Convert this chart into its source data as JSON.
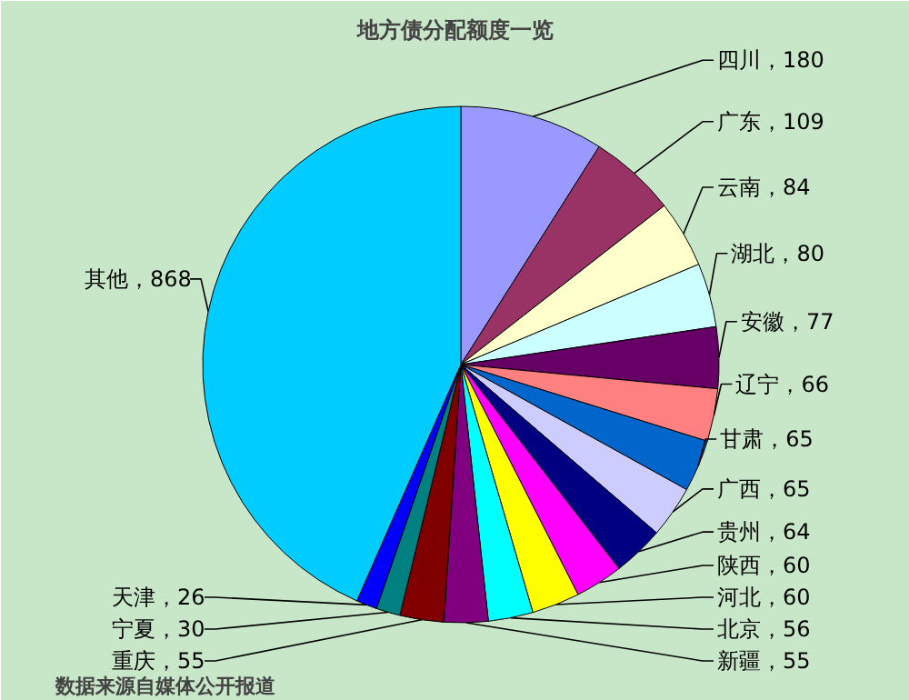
{
  "chart_data": {
    "type": "pie",
    "title": "地方债分配额度一览",
    "categories": [
      "四川",
      "广东",
      "云南",
      "湖北",
      "安徽",
      "辽宁",
      "甘肃",
      "广西",
      "贵州",
      "陕西",
      "河北",
      "北京",
      "新疆",
      "重庆",
      "宁夏",
      "天津",
      "其他"
    ],
    "values": [
      180,
      109,
      84,
      80,
      77,
      66,
      65,
      65,
      64,
      60,
      60,
      56,
      55,
      55,
      30,
      26,
      868
    ],
    "colors": [
      "#9999ff",
      "#993366",
      "#ffffcc",
      "#ccffff",
      "#660066",
      "#ff8080",
      "#0066cc",
      "#ccccff",
      "#000080",
      "#ff00ff",
      "#ffff00",
      "#00ffff",
      "#800080",
      "#800000",
      "#008080",
      "#0000ff",
      "#00ccff"
    ],
    "value_labels": [
      "，180",
      "，109",
      "，84",
      "，80",
      "，77",
      "，66",
      "，65",
      "，65",
      "，64",
      "，60",
      "，60",
      "，56",
      "，55",
      "，55",
      "，30",
      "，26",
      "，868"
    ],
    "annotations": [
      "数据来源自媒体公开报道"
    ]
  }
}
